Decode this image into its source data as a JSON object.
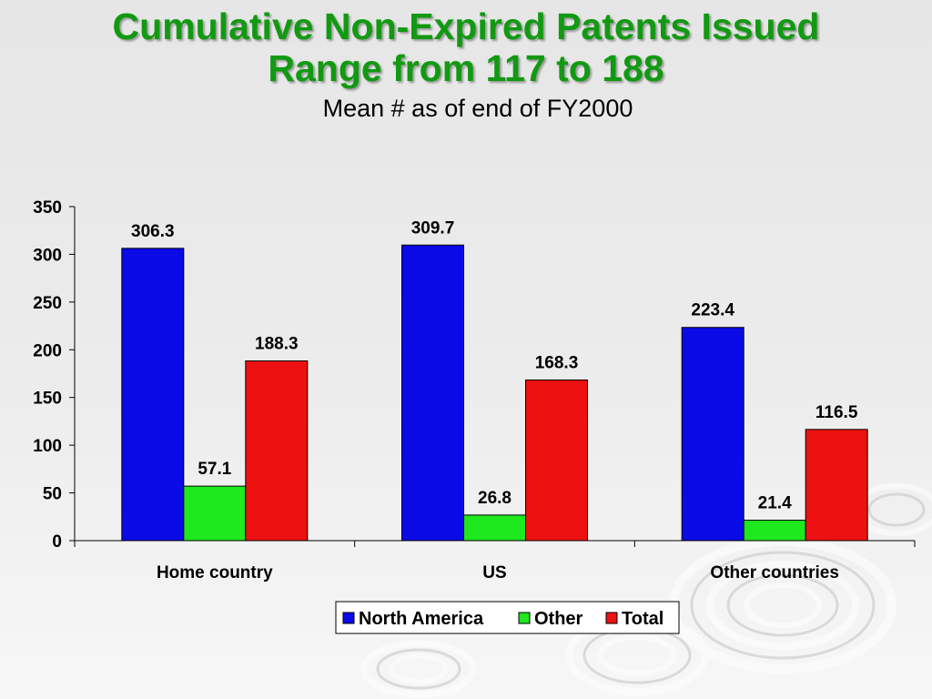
{
  "slide": {
    "title_line1": "Cumulative Non-Expired Patents Issued",
    "title_line2": "Range from 117 to 188",
    "subtitle": "Mean # as of end of FY2000"
  },
  "chart_data": {
    "type": "bar",
    "categories": [
      "Home country",
      "US",
      "Other countries"
    ],
    "series": [
      {
        "name": "North America",
        "color": "#0a0ae6",
        "values": [
          306.3,
          309.7,
          223.4
        ]
      },
      {
        "name": "Other",
        "color": "#1ee81e",
        "values": [
          57.1,
          26.8,
          21.4
        ]
      },
      {
        "name": "Total",
        "color": "#ee1111",
        "values": [
          188.3,
          168.3,
          116.5
        ]
      }
    ],
    "ylim": [
      0,
      350
    ],
    "yticks": [
      0,
      50,
      100,
      150,
      200,
      250,
      300,
      350
    ],
    "grid": false,
    "legend": "bottom",
    "data_labels": true
  }
}
